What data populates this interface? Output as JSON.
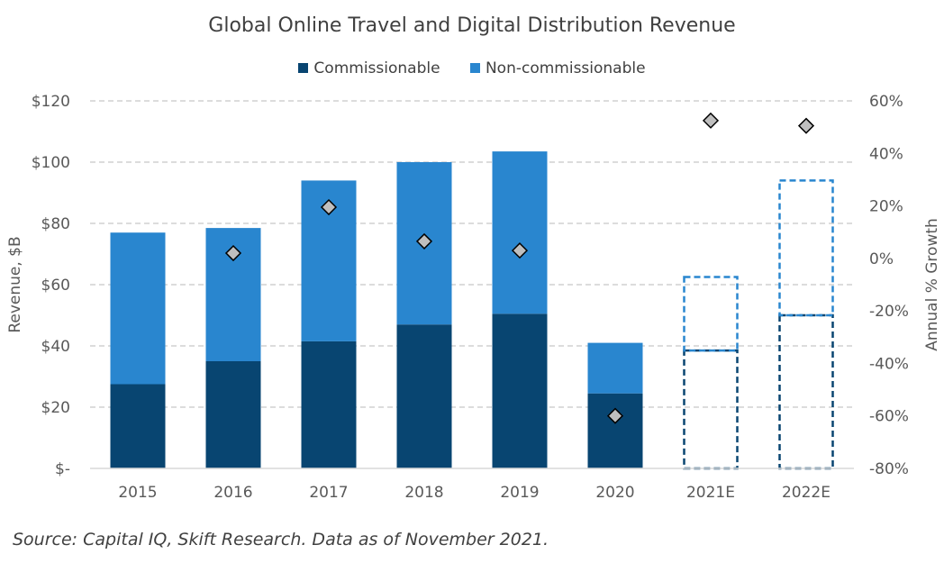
{
  "chart_data": {
    "type": "bar",
    "stacked": true,
    "title": "Global Online Travel and Digital Distribution Revenue",
    "categories": [
      "2015",
      "2016",
      "2017",
      "2018",
      "2019",
      "2020",
      "2021E",
      "2022E"
    ],
    "estimate_categories": [
      "2021E",
      "2022E"
    ],
    "series": [
      {
        "name": "Commissionable",
        "values": [
          27.5,
          35,
          41.5,
          47,
          50.5,
          24.5,
          38.5,
          50
        ],
        "color": "#084571"
      },
      {
        "name": "Non-commissionable",
        "values": [
          49.5,
          43.5,
          52.5,
          53,
          53,
          16.5,
          24,
          44
        ],
        "color": "#2986CF"
      }
    ],
    "growth": {
      "name": "Annual % Growth",
      "values": [
        null,
        2,
        19.5,
        6.5,
        3,
        -60,
        52.5,
        50.5
      ],
      "color": "#BFBFBF"
    },
    "ylabel": "Revenue, $B",
    "y2label": "Annual % Growth",
    "ylim": [
      0,
      120
    ],
    "y2lim": [
      -80,
      60
    ],
    "yticks": [
      "$-",
      "$20",
      "$40",
      "$60",
      "$80",
      "$100",
      "$120"
    ],
    "y2ticks": [
      "-80%",
      "-60%",
      "-40%",
      "-20%",
      "0%",
      "20%",
      "40%",
      "60%"
    ],
    "grid": true,
    "legend_position": "top-center",
    "source": "Source: Capital IQ, Skift Research. Data as of November 2021."
  }
}
